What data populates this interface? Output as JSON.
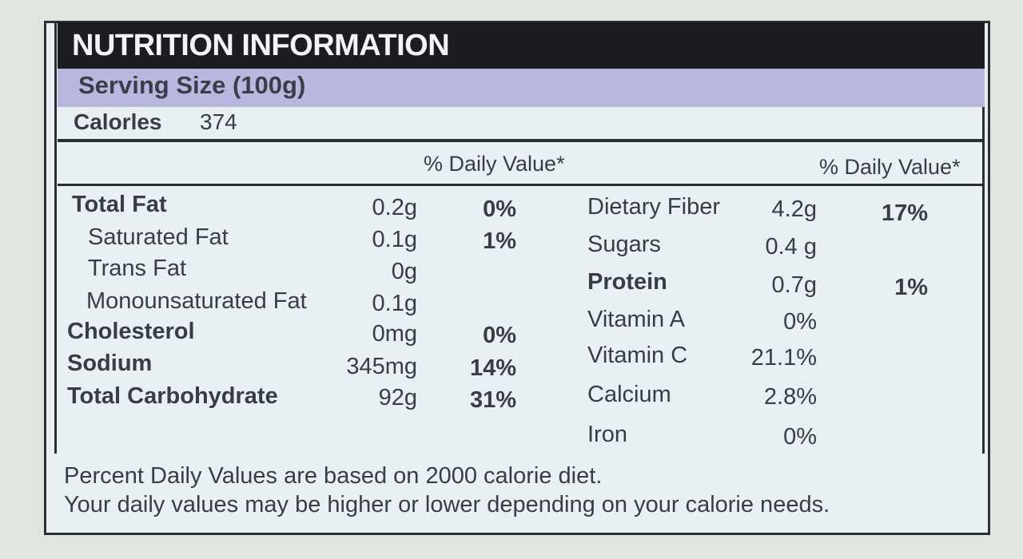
{
  "title": "NUTRITION INFORMATION",
  "serving_size": "Serving Size (100g)",
  "calories": {
    "label": "Calorles",
    "value": "374"
  },
  "daily_value_header": "% Daily Value*",
  "left_nutrients": [
    {
      "name": "Total Fat",
      "amount": "0.2g",
      "dv": "0%"
    },
    {
      "name": "Saturated Fat",
      "amount": "0.1g",
      "dv": "1%"
    },
    {
      "name": "Trans Fat",
      "amount": "0g",
      "dv": ""
    },
    {
      "name": "Monounsaturated Fat",
      "amount": "0.1g",
      "dv": ""
    },
    {
      "name": "Cholesterol",
      "amount": "0mg",
      "dv": "0%"
    },
    {
      "name": "Sodium",
      "amount": "345mg",
      "dv": "14%"
    },
    {
      "name": "Total Carbohydrate",
      "amount": "92g",
      "dv": "31%"
    }
  ],
  "right_nutrients": [
    {
      "name": "Dietary Fiber",
      "amount": "4.2g",
      "dv": "17%"
    },
    {
      "name": "Sugars",
      "amount": "0.4 g",
      "dv": ""
    },
    {
      "name": "Protein",
      "amount": "0.7g",
      "dv": "1%"
    },
    {
      "name": "Vitamin A",
      "amount": "0%",
      "dv": ""
    },
    {
      "name": "Vitamin C",
      "amount": "21.1%",
      "dv": ""
    },
    {
      "name": "Calcium",
      "amount": "2.8%",
      "dv": ""
    },
    {
      "name": "Iron",
      "amount": "0%",
      "dv": ""
    }
  ],
  "footnote": {
    "line1": "Percent Daily Values are based on 2000 calorie diet.",
    "line2": "Your daily values may be higher or lower depending on your calorie needs."
  }
}
